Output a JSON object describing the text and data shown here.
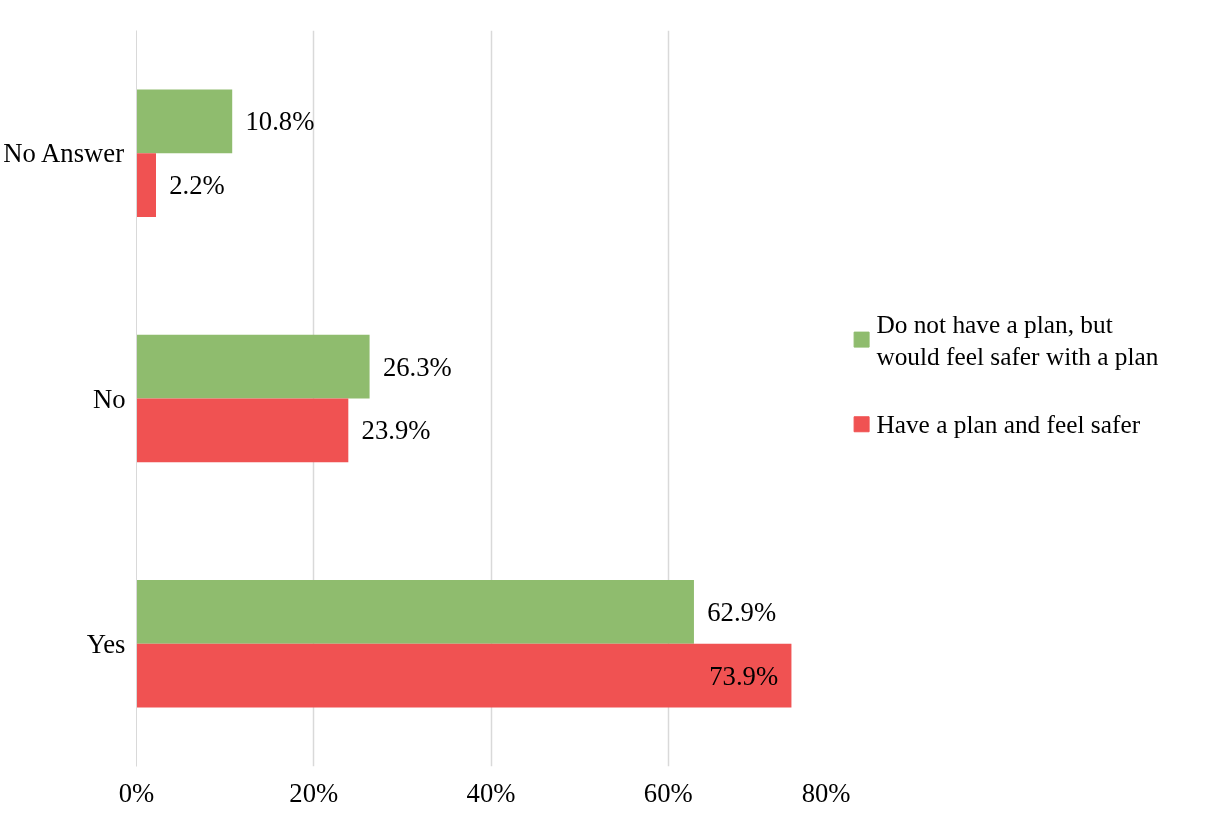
{
  "chart_data": {
    "type": "bar",
    "orientation": "horizontal",
    "categories": [
      "No Answer",
      "No",
      "Yes"
    ],
    "series": [
      {
        "name": "Do not have a plan, but would feel safer with a plan",
        "color": "#8fbc6e",
        "values": [
          10.8,
          26.3,
          62.9
        ],
        "value_labels": [
          "10.8%",
          "26.3%",
          "62.9%"
        ]
      },
      {
        "name": "Have a plan and feel safer",
        "color": "#f05252",
        "values": [
          2.2,
          23.9,
          73.9
        ],
        "value_labels": [
          "2.2%",
          "23.9%",
          "73.9%"
        ]
      }
    ],
    "xlim": [
      0,
      80
    ],
    "xticks": [
      {
        "value": 0,
        "label": "0%"
      },
      {
        "value": 20,
        "label": "20%"
      },
      {
        "value": 40,
        "label": "40%"
      },
      {
        "value": 60,
        "label": "60%"
      },
      {
        "value": 80,
        "label": "80%"
      }
    ],
    "grid": "x",
    "legend": "right"
  }
}
